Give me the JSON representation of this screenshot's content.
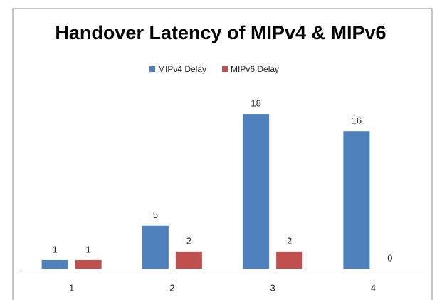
{
  "chart_data": {
    "type": "bar",
    "title": "Handover Latency of MIPv4 & MIPv6",
    "categories": [
      "1",
      "2",
      "3",
      "4"
    ],
    "series": [
      {
        "name": "MIPv4 Delay",
        "color": "#4f81bd",
        "values": [
          1,
          5,
          18,
          16
        ]
      },
      {
        "name": "MIPv6 Delay",
        "color": "#c0504d",
        "values": [
          1,
          2,
          2,
          0
        ]
      }
    ],
    "ylim": [
      0,
      20
    ],
    "legend": "top",
    "grid": false
  }
}
